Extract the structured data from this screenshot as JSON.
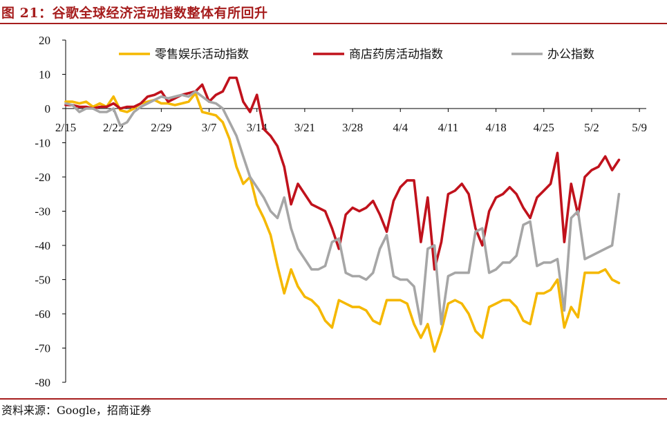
{
  "title": "图 21：谷歌全球经济活动指数整体有所回升",
  "source": "资料来源：Google，招商证券",
  "chart_data": {
    "type": "line",
    "ylim": [
      -80,
      20
    ],
    "yticks": [
      20,
      10,
      0,
      -10,
      -20,
      -30,
      -40,
      -50,
      -60,
      -70,
      -80
    ],
    "x_start": "2/15",
    "x_end": "5/10",
    "xticks": [
      "2/15",
      "2/22",
      "2/29",
      "3/7",
      "3/14",
      "3/21",
      "3/28",
      "4/4",
      "4/11",
      "4/18",
      "4/25",
      "5/2",
      "5/9"
    ],
    "legend_position": "top",
    "series": [
      {
        "name": "零售娱乐活动指数",
        "color": "#f5b800",
        "values": [
          2,
          2,
          1.5,
          2,
          0.5,
          1.5,
          0.5,
          3.5,
          -0.5,
          -1,
          0,
          1.5,
          2,
          2.5,
          1.5,
          1.5,
          1,
          1.5,
          2,
          4.5,
          -1,
          -1.5,
          -2,
          -4,
          -9,
          -17,
          -22,
          -20,
          -28,
          -32,
          -37,
          -46,
          -54,
          -47,
          -52,
          -55,
          -56,
          -58,
          -62,
          -64,
          -56,
          -57,
          -58,
          -58,
          -59,
          -62,
          -63,
          -56,
          -56,
          -56,
          -57,
          -63,
          -67,
          -63,
          -71,
          -65,
          -57,
          -56,
          -57,
          -60,
          -65,
          -67,
          -58,
          -57,
          -56,
          -56,
          -58,
          -62,
          -63,
          -54,
          -54,
          -53,
          -50,
          -64,
          -58,
          -61,
          -48,
          -48,
          -48,
          -47,
          -50,
          -51
        ]
      },
      {
        "name": "商店药房活动指数",
        "color": "#c0121c",
        "values": [
          1,
          1,
          0.5,
          0.5,
          0,
          0.5,
          0.5,
          1.5,
          0,
          0.5,
          0.5,
          1.5,
          3.5,
          4,
          5,
          2,
          3,
          4,
          4.5,
          5,
          7,
          2,
          4,
          5,
          9,
          9,
          2,
          -1,
          4,
          -6,
          -8,
          -11,
          -17,
          -28,
          -22,
          -25,
          -28,
          -29,
          -30,
          -35,
          -41,
          -31,
          -29,
          -30,
          -29,
          -27,
          -31,
          -36,
          -27,
          -23,
          -21,
          -21,
          -39,
          -26,
          -47,
          -39,
          -25,
          -24,
          -22,
          -25,
          -35,
          -40,
          -30,
          -26,
          -25,
          -23,
          -25,
          -29,
          -32,
          -26,
          -24,
          -22,
          -13,
          -39,
          -22,
          -31,
          -20,
          -18,
          -17,
          -14,
          -18,
          -15
        ]
      },
      {
        "name": "办公指数",
        "color": "#a6a6a6",
        "values": [
          1.5,
          1,
          -1,
          0,
          0,
          -1,
          -1,
          0,
          -5,
          -4,
          -1,
          0.5,
          1.5,
          2.5,
          3.5,
          3,
          3.5,
          4,
          3.5,
          5,
          3.5,
          2,
          1.5,
          0,
          -4,
          -8,
          -14,
          -20,
          -23,
          -26,
          -30,
          -32,
          -26,
          -35,
          -41,
          -44,
          -47,
          -47,
          -46,
          -39,
          -38,
          -48,
          -49,
          -49,
          -50,
          -48,
          -41,
          -37,
          -49,
          -50,
          -50,
          -52,
          -63,
          -41,
          -40,
          -63,
          -49,
          -48,
          -48,
          -48,
          -36,
          -35,
          -48,
          -47,
          -45,
          -45,
          -43,
          -34,
          -33,
          -46,
          -45,
          -45,
          -44,
          -59,
          -32,
          -30,
          -44,
          -43,
          -42,
          -41,
          -40,
          -25
        ]
      }
    ]
  }
}
